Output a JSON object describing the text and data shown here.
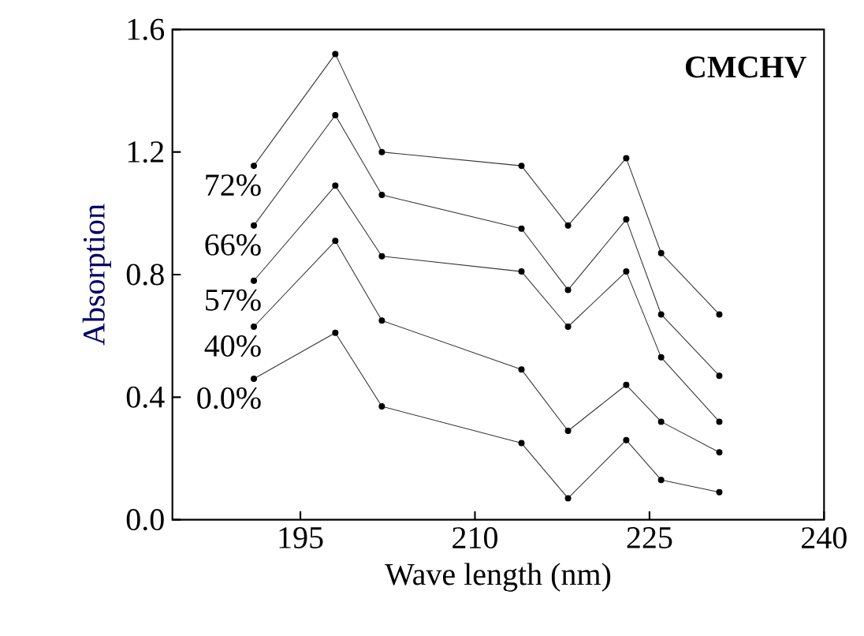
{
  "chart_data": {
    "type": "line",
    "title": "CMCHV",
    "xlabel": "Wave length (nm)",
    "ylabel": "Absorption",
    "x": [
      191,
      198,
      202,
      214,
      218,
      223,
      226,
      231
    ],
    "series": [
      {
        "name": "72%",
        "color": "#333333",
        "values": [
          1.155,
          1.52,
          1.2,
          1.155,
          0.96,
          1.18,
          0.87,
          0.67
        ]
      },
      {
        "name": "66%",
        "color": "#333333",
        "values": [
          0.96,
          1.32,
          1.06,
          0.95,
          0.75,
          0.98,
          0.67,
          0.47
        ]
      },
      {
        "name": "57%",
        "color": "#333333",
        "values": [
          0.78,
          1.09,
          0.86,
          0.81,
          0.63,
          0.81,
          0.53,
          0.32
        ]
      },
      {
        "name": "40%",
        "color": "#333333",
        "values": [
          0.63,
          0.91,
          0.65,
          0.49,
          0.29,
          0.44,
          0.32,
          0.22
        ]
      },
      {
        "name": "0.0%",
        "color": "#333333",
        "values": [
          0.46,
          0.61,
          0.37,
          0.25,
          0.07,
          0.26,
          0.13,
          0.09
        ]
      }
    ],
    "xlim": [
      184,
      240
    ],
    "xticks": [
      195,
      210,
      225,
      240
    ],
    "ylim": [
      0,
      1.6
    ],
    "yticks": [
      {
        "value": 0,
        "label": "0.0"
      },
      {
        "value": 0.4,
        "label": "0.4"
      },
      {
        "value": 0.8,
        "label": "0.8"
      },
      {
        "value": 1.2,
        "label": "1.2"
      },
      {
        "value": 1.6,
        "label": "1.6"
      }
    ],
    "grid": false,
    "legend": false,
    "marker": "circle",
    "line_style": "solid"
  }
}
